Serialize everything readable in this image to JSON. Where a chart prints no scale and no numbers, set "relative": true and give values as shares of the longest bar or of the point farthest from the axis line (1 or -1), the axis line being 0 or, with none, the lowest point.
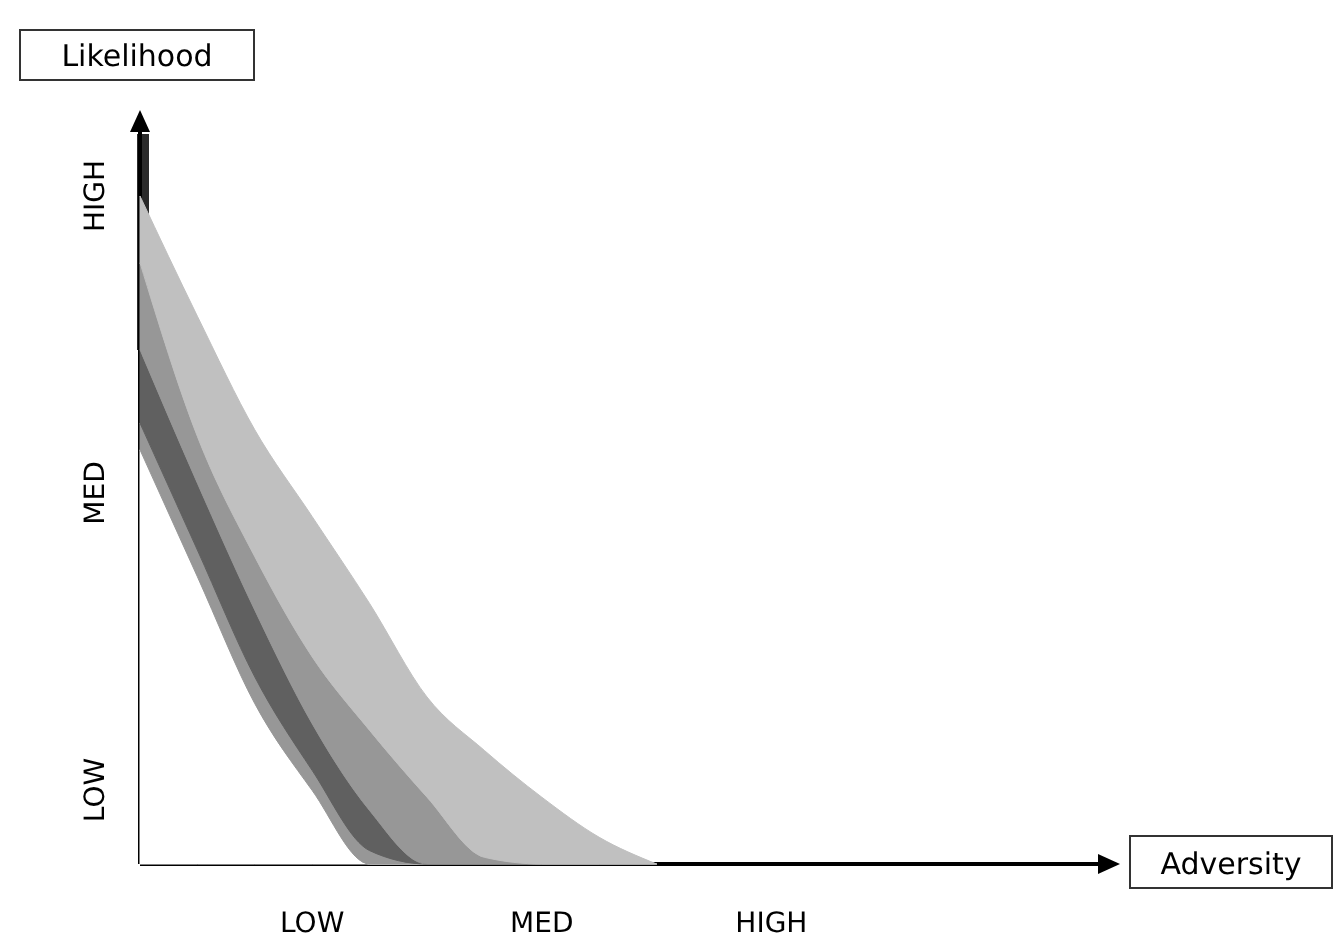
{
  "chart_data": {
    "type": "area",
    "relative": true,
    "stacked": true,
    "xlabel": "Adversity",
    "ylabel": "Likelihood",
    "categories": [
      null,
      null,
      null,
      "LOW",
      null,
      null,
      null,
      "MED",
      null,
      null,
      null,
      "HIGH",
      null,
      null,
      null,
      null,
      null,
      null
    ],
    "annotations": [
      "HIGH",
      "MED",
      "LOW"
    ],
    "series": [
      {
        "color": "#ffffff",
        "values": [
          0.62,
          0.43,
          0.24,
          0.11,
          0,
          0,
          0,
          0,
          0,
          0,
          null,
          null,
          null,
          null,
          null,
          null,
          null,
          null
        ]
      },
      {
        "color": "#979797",
        "values": [
          0.04,
          0.04,
          0.04,
          0.03,
          0.02,
          0,
          0,
          0,
          0,
          0,
          null,
          null,
          null,
          null,
          null,
          null,
          null,
          null
        ]
      },
      {
        "color": "#606060",
        "values": [
          0.11,
          0.1,
          0.1,
          0.07,
          0.06,
          0,
          0,
          0,
          0,
          0,
          null,
          null,
          null,
          null,
          null,
          null,
          null,
          null
        ]
      },
      {
        "color": "#979797",
        "values": [
          0.13,
          0.07,
          0.08,
          0.1,
          0.12,
          0.1,
          0.01,
          0,
          0,
          0,
          null,
          null,
          null,
          null,
          null,
          null,
          null,
          null
        ]
      },
      {
        "color": "#c0c0c0",
        "values": [
          0.1,
          0.18,
          0.19,
          0.21,
          0.19,
          0.15,
          0.16,
          0.1,
          0.04,
          0,
          null,
          null,
          null,
          null,
          null,
          null,
          null,
          null
        ]
      }
    ]
  }
}
